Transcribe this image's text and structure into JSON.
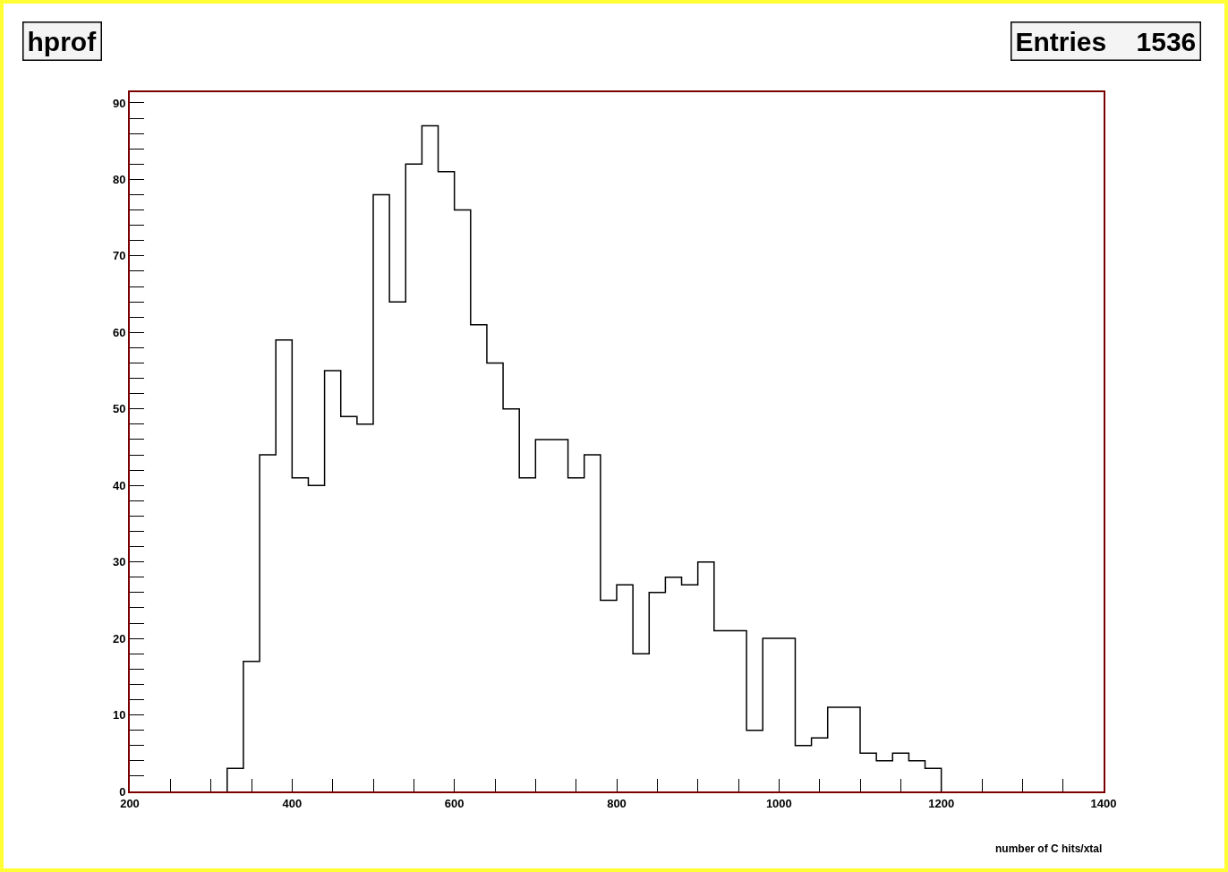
{
  "chart_data": {
    "type": "histogram",
    "title": "hprof",
    "xlabel": "number of C hits/xtal",
    "annotations": [
      "Entries    1536"
    ],
    "bins": [
      320,
      340,
      360,
      380,
      400,
      420,
      440,
      460,
      480,
      500,
      520,
      540,
      560,
      580,
      600,
      620,
      640,
      660,
      680,
      700,
      720,
      740,
      760,
      780,
      800,
      820,
      840,
      860,
      880,
      900,
      920,
      940,
      960,
      980,
      1000,
      1020,
      1040,
      1060,
      1080,
      1100,
      1120,
      1140,
      1160,
      1180,
      1200
    ],
    "values": [
      3,
      17,
      44,
      59,
      41,
      40,
      55,
      49,
      48,
      78,
      64,
      82,
      87,
      81,
      76,
      61,
      56,
      50,
      41,
      46,
      46,
      41,
      44,
      25,
      27,
      18,
      26,
      28,
      27,
      30,
      21,
      21,
      8,
      20,
      20,
      6,
      7,
      11,
      11,
      5,
      4,
      5,
      4,
      3
    ],
    "color": "#000000",
    "xlim": [
      200,
      1400
    ],
    "xticks": [
      200,
      {
        "value": 250,
        "label": null
      },
      {
        "value": 300,
        "label": null
      },
      {
        "value": 350,
        "label": null
      },
      400,
      {
        "value": 450,
        "label": null
      },
      {
        "value": 500,
        "label": null
      },
      {
        "value": 550,
        "label": null
      },
      600,
      {
        "value": 650,
        "label": null
      },
      {
        "value": 700,
        "label": null
      },
      {
        "value": 750,
        "label": null
      },
      800,
      {
        "value": 850,
        "label": null
      },
      {
        "value": 900,
        "label": null
      },
      {
        "value": 950,
        "label": null
      },
      1000,
      {
        "value": 1050,
        "label": null
      },
      {
        "value": 1100,
        "label": null
      },
      {
        "value": 1150,
        "label": null
      },
      1200,
      {
        "value": 1250,
        "label": null
      },
      {
        "value": 1300,
        "label": null
      },
      {
        "value": 1350,
        "label": null
      },
      1400
    ],
    "ylim": [
      0,
      91.4
    ],
    "yticks": [
      0,
      {
        "value": 2,
        "label": null
      },
      {
        "value": 4,
        "label": null
      },
      {
        "value": 6,
        "label": null
      },
      {
        "value": 8,
        "label": null
      },
      10,
      {
        "value": 12,
        "label": null
      },
      {
        "value": 14,
        "label": null
      },
      {
        "value": 16,
        "label": null
      },
      {
        "value": 18,
        "label": null
      },
      20,
      {
        "value": 22,
        "label": null
      },
      {
        "value": 24,
        "label": null
      },
      {
        "value": 26,
        "label": null
      },
      {
        "value": 28,
        "label": null
      },
      30,
      {
        "value": 32,
        "label": null
      },
      {
        "value": 34,
        "label": null
      },
      {
        "value": 36,
        "label": null
      },
      {
        "value": 38,
        "label": null
      },
      40,
      {
        "value": 42,
        "label": null
      },
      {
        "value": 44,
        "label": null
      },
      {
        "value": 46,
        "label": null
      },
      {
        "value": 48,
        "label": null
      },
      50,
      {
        "value": 52,
        "label": null
      },
      {
        "value": 54,
        "label": null
      },
      {
        "value": 56,
        "label": null
      },
      {
        "value": 58,
        "label": null
      },
      60,
      {
        "value": 62,
        "label": null
      },
      {
        "value": 64,
        "label": null
      },
      {
        "value": 66,
        "label": null
      },
      {
        "value": 68,
        "label": null
      },
      70,
      {
        "value": 72,
        "label": null
      },
      {
        "value": 74,
        "label": null
      },
      {
        "value": 76,
        "label": null
      },
      {
        "value": 78,
        "label": null
      },
      80,
      {
        "value": 82,
        "label": null
      },
      {
        "value": 84,
        "label": null
      },
      {
        "value": 86,
        "label": null
      },
      {
        "value": 88,
        "label": null
      },
      90
    ],
    "grid": false
  }
}
